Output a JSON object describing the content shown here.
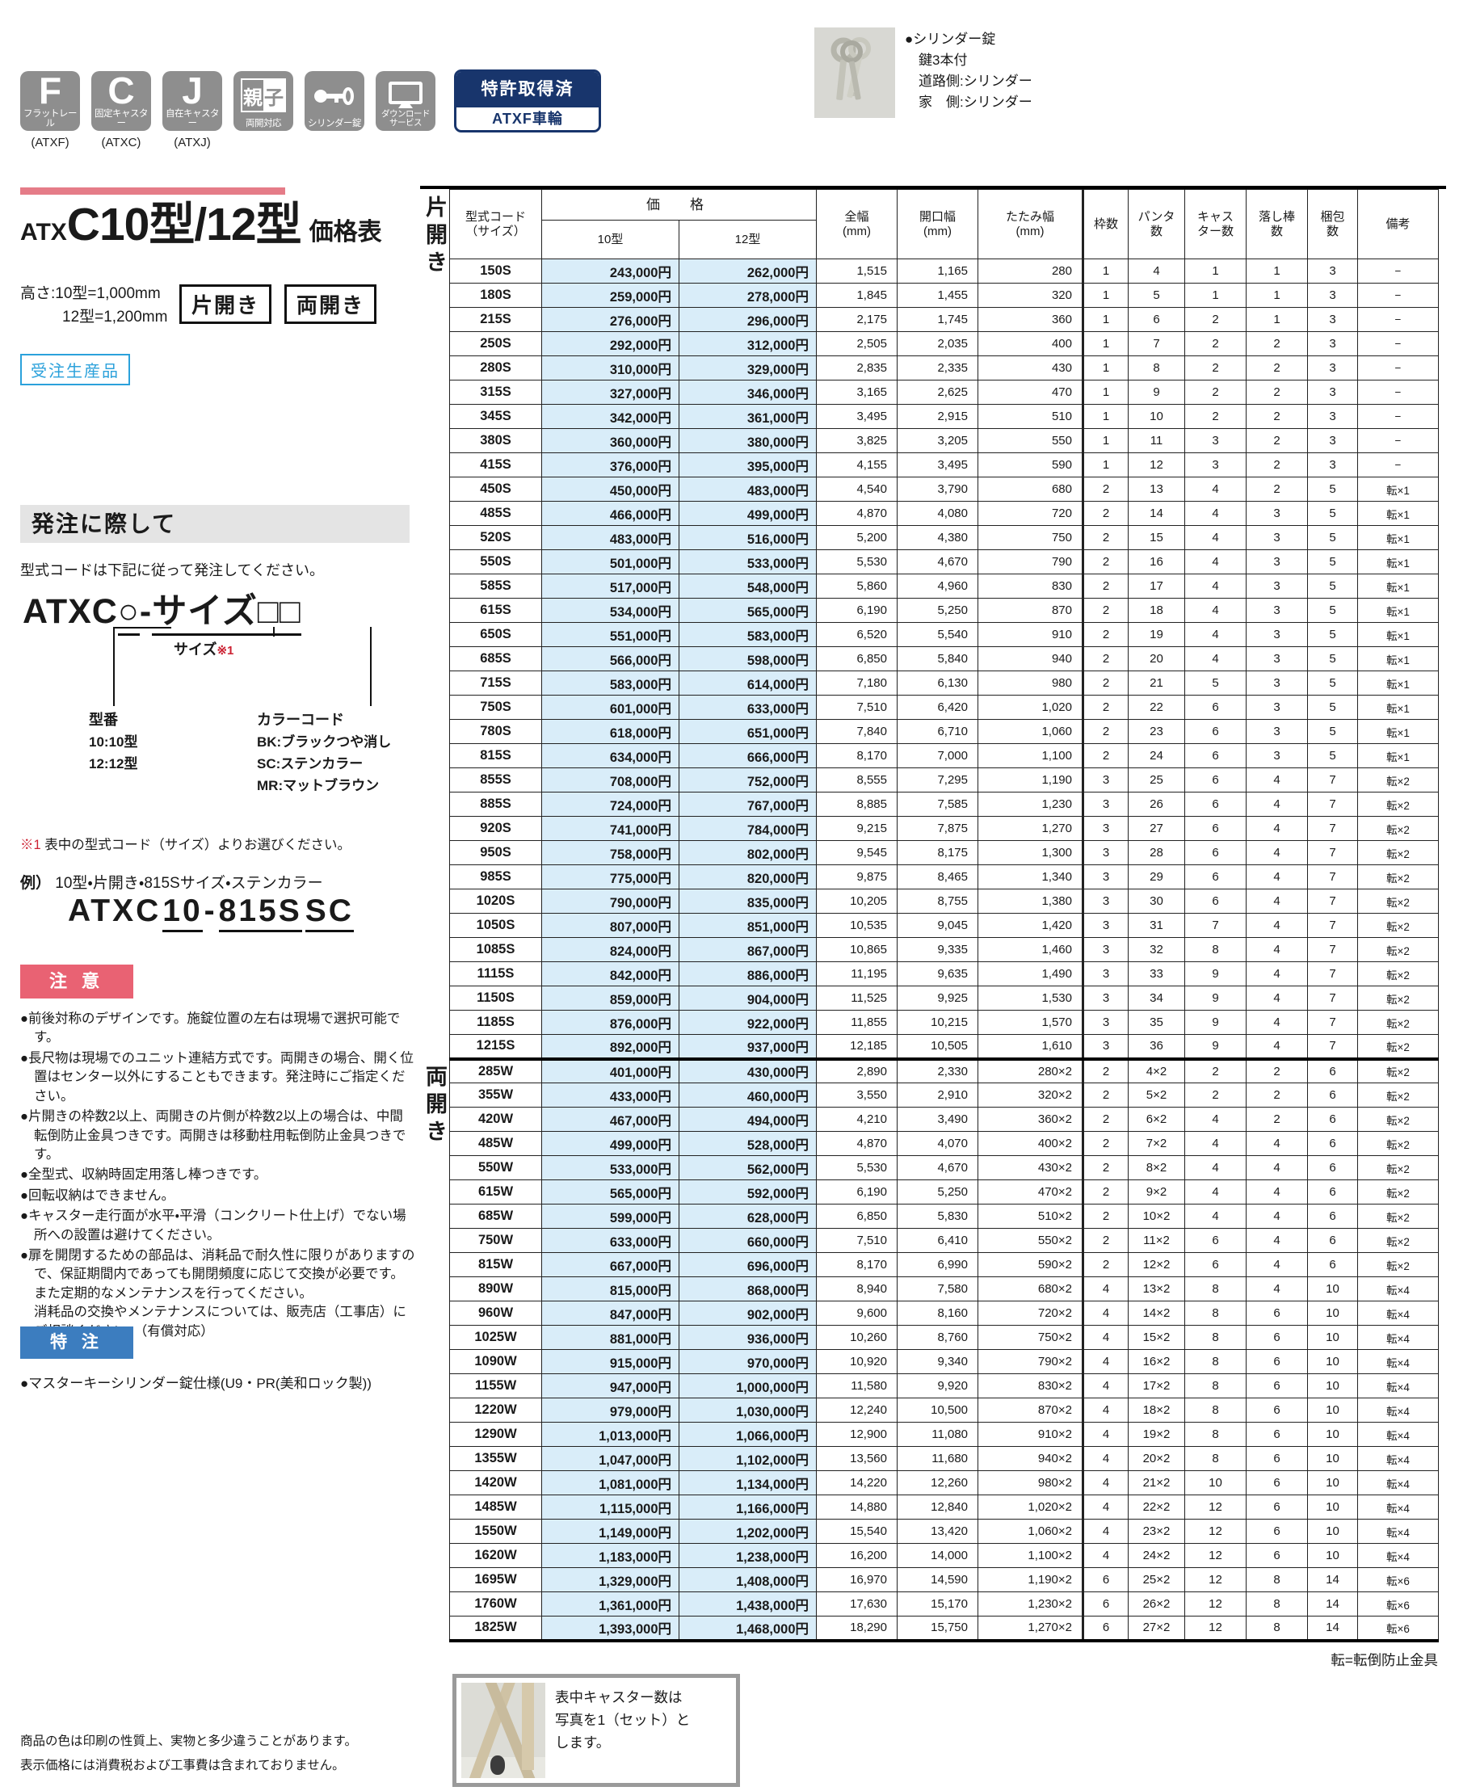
{
  "feature_icons": [
    {
      "type": "letter",
      "glyph": "F",
      "label": "フラットレール",
      "code": "(ATXF)"
    },
    {
      "type": "letter",
      "glyph": "C",
      "label": "固定キャスター",
      "code": "(ATXC)"
    },
    {
      "type": "letter",
      "glyph": "J",
      "label": "自在キャスター",
      "code": "(ATXJ)"
    },
    {
      "type": "oyako",
      "glyph": "親子",
      "label": "両開対応",
      "code": ""
    },
    {
      "type": "key",
      "glyph": "",
      "label": "シリンダー錠",
      "code": ""
    },
    {
      "type": "monitor",
      "glyph": "",
      "label": "ダウンロード\nサービス",
      "code": ""
    }
  ],
  "patent_badge": {
    "top": "特許取得済",
    "bottom": "ATXF車輪"
  },
  "cylinder_note": {
    "lines": [
      "●シリンダー錠",
      "鍵3本付",
      "道路側:シリンダー",
      "家　側:シリンダー"
    ]
  },
  "title": {
    "prefix": "ATX",
    "main": "C10型/12型",
    "suffix": "価格表"
  },
  "height_note": {
    "line1": "高さ:10型=1,000mm",
    "line2": "12型=1,200mm"
  },
  "open_types": {
    "left": "片開き",
    "right": "両開き"
  },
  "order_badge": "受注生産品",
  "order_section": {
    "heading": "発注に際して",
    "instruction": "型式コードは下記に従って発注してください。",
    "code_parts": {
      "prefix": "ATXC",
      "circle": "○",
      "sep": "-",
      "size": "サイズ",
      "boxes": "□□"
    },
    "size_label": "サイズ",
    "size_ref": "※1",
    "model_label": "型番",
    "model_options": [
      "10:10型",
      "12:12型"
    ],
    "color_label": "カラーコード",
    "color_options": [
      "BK:ブラックつや消し",
      "SC:ステンカラー",
      "MR:マットブラウン"
    ],
    "ref_mark": "※1",
    "ref_note": "表中の型式コード（サイズ）よりお選びください。",
    "example_label": "例）",
    "example_text": "10型・片開き・815Sサイズ・ステンカラー",
    "example_code_parts": {
      "prefix": "ATXC",
      "model": "10",
      "sep": "-",
      "size": "815S",
      "color": "SC"
    }
  },
  "caution": {
    "heading": "注 意",
    "items": [
      "●前後対称のデザインです。施錠位置の左右は現場で選択可能です。",
      "●長尺物は現場でのユニット連結方式です。両開きの場合、開く位置はセンター以外にすることもできます。発注時にご指定ください。",
      "●片開きの枠数2以上、両開きの片側が枠数2以上の場合は、中間転倒防止金具つきです。両開きは移動柱用転倒防止金具つきです。",
      "●全型式、収納時固定用落し棒つきです。",
      "●回転収納はできません。",
      "●キャスター走行面が水平・平滑（コンクリート仕上げ）でない場所への設置は避けてください。",
      "●扉を開閉するための部品は、消耗品で耐久性に限りがありますので、保証期間内であっても開閉頻度に応じて交換が必要です。また定期的なメンテナンスを行ってください。\n消耗品の交換やメンテナンスについては、販売店（工事店）にご相談ください。（有償対応）"
    ]
  },
  "special": {
    "heading": "特 注",
    "note": "●マスターキーシリンダー錠仕様(U9・PR(美和ロック製))"
  },
  "price_table": {
    "header": {
      "model_code": "型式コード\n（サイズ）",
      "price_group": "価　格",
      "type10": "10型",
      "type12": "12型",
      "total_width": "全幅\n(mm)",
      "opening_width": "開口幅\n(mm)",
      "folded_width": "たたみ幅\n(mm)",
      "frame_count": "枠数",
      "panta_count": "パンタ\n数",
      "caster_count": "キャス\nター数",
      "drop_bar_count": "落し棒\n数",
      "package_count": "梱包\n数",
      "remarks": "備考"
    },
    "col_keys": [
      "model-code",
      "price-10",
      "price-12",
      "total-width",
      "opening-width",
      "folded-width",
      "frame-count",
      "panta-count",
      "caster-count",
      "drop-bar-count",
      "package-count",
      "remarks"
    ],
    "groups": [
      {
        "label": "片開き",
        "rows": [
          [
            "150S",
            "243,000円",
            "262,000円",
            "1,515",
            "1,165",
            "280",
            "1",
            "4",
            "1",
            "1",
            "3",
            "−"
          ],
          [
            "180S",
            "259,000円",
            "278,000円",
            "1,845",
            "1,455",
            "320",
            "1",
            "5",
            "1",
            "1",
            "3",
            "−"
          ],
          [
            "215S",
            "276,000円",
            "296,000円",
            "2,175",
            "1,745",
            "360",
            "1",
            "6",
            "2",
            "1",
            "3",
            "−"
          ],
          [
            "250S",
            "292,000円",
            "312,000円",
            "2,505",
            "2,035",
            "400",
            "1",
            "7",
            "2",
            "2",
            "3",
            "−"
          ],
          [
            "280S",
            "310,000円",
            "329,000円",
            "2,835",
            "2,335",
            "430",
            "1",
            "8",
            "2",
            "2",
            "3",
            "−"
          ],
          [
            "315S",
            "327,000円",
            "346,000円",
            "3,165",
            "2,625",
            "470",
            "1",
            "9",
            "2",
            "2",
            "3",
            "−"
          ],
          [
            "345S",
            "342,000円",
            "361,000円",
            "3,495",
            "2,915",
            "510",
            "1",
            "10",
            "2",
            "2",
            "3",
            "−"
          ],
          [
            "380S",
            "360,000円",
            "380,000円",
            "3,825",
            "3,205",
            "550",
            "1",
            "11",
            "3",
            "2",
            "3",
            "−"
          ],
          [
            "415S",
            "376,000円",
            "395,000円",
            "4,155",
            "3,495",
            "590",
            "1",
            "12",
            "3",
            "2",
            "3",
            "−"
          ],
          [
            "450S",
            "450,000円",
            "483,000円",
            "4,540",
            "3,790",
            "680",
            "2",
            "13",
            "4",
            "2",
            "5",
            "転×1"
          ],
          [
            "485S",
            "466,000円",
            "499,000円",
            "4,870",
            "4,080",
            "720",
            "2",
            "14",
            "4",
            "3",
            "5",
            "転×1"
          ],
          [
            "520S",
            "483,000円",
            "516,000円",
            "5,200",
            "4,380",
            "750",
            "2",
            "15",
            "4",
            "3",
            "5",
            "転×1"
          ],
          [
            "550S",
            "501,000円",
            "533,000円",
            "5,530",
            "4,670",
            "790",
            "2",
            "16",
            "4",
            "3",
            "5",
            "転×1"
          ],
          [
            "585S",
            "517,000円",
            "548,000円",
            "5,860",
            "4,960",
            "830",
            "2",
            "17",
            "4",
            "3",
            "5",
            "転×1"
          ],
          [
            "615S",
            "534,000円",
            "565,000円",
            "6,190",
            "5,250",
            "870",
            "2",
            "18",
            "4",
            "3",
            "5",
            "転×1"
          ],
          [
            "650S",
            "551,000円",
            "583,000円",
            "6,520",
            "5,540",
            "910",
            "2",
            "19",
            "4",
            "3",
            "5",
            "転×1"
          ],
          [
            "685S",
            "566,000円",
            "598,000円",
            "6,850",
            "5,840",
            "940",
            "2",
            "20",
            "4",
            "3",
            "5",
            "転×1"
          ],
          [
            "715S",
            "583,000円",
            "614,000円",
            "7,180",
            "6,130",
            "980",
            "2",
            "21",
            "5",
            "3",
            "5",
            "転×1"
          ],
          [
            "750S",
            "601,000円",
            "633,000円",
            "7,510",
            "6,420",
            "1,020",
            "2",
            "22",
            "6",
            "3",
            "5",
            "転×1"
          ],
          [
            "780S",
            "618,000円",
            "651,000円",
            "7,840",
            "6,710",
            "1,060",
            "2",
            "23",
            "6",
            "3",
            "5",
            "転×1"
          ],
          [
            "815S",
            "634,000円",
            "666,000円",
            "8,170",
            "7,000",
            "1,100",
            "2",
            "24",
            "6",
            "3",
            "5",
            "転×1"
          ],
          [
            "855S",
            "708,000円",
            "752,000円",
            "8,555",
            "7,295",
            "1,190",
            "3",
            "25",
            "6",
            "4",
            "7",
            "転×2"
          ],
          [
            "885S",
            "724,000円",
            "767,000円",
            "8,885",
            "7,585",
            "1,230",
            "3",
            "26",
            "6",
            "4",
            "7",
            "転×2"
          ],
          [
            "920S",
            "741,000円",
            "784,000円",
            "9,215",
            "7,875",
            "1,270",
            "3",
            "27",
            "6",
            "4",
            "7",
            "転×2"
          ],
          [
            "950S",
            "758,000円",
            "802,000円",
            "9,545",
            "8,175",
            "1,300",
            "3",
            "28",
            "6",
            "4",
            "7",
            "転×2"
          ],
          [
            "985S",
            "775,000円",
            "820,000円",
            "9,875",
            "8,465",
            "1,340",
            "3",
            "29",
            "6",
            "4",
            "7",
            "転×2"
          ],
          [
            "1020S",
            "790,000円",
            "835,000円",
            "10,205",
            "8,755",
            "1,380",
            "3",
            "30",
            "6",
            "4",
            "7",
            "転×2"
          ],
          [
            "1050S",
            "807,000円",
            "851,000円",
            "10,535",
            "9,045",
            "1,420",
            "3",
            "31",
            "7",
            "4",
            "7",
            "転×2"
          ],
          [
            "1085S",
            "824,000円",
            "867,000円",
            "10,865",
            "9,335",
            "1,460",
            "3",
            "32",
            "8",
            "4",
            "7",
            "転×2"
          ],
          [
            "1115S",
            "842,000円",
            "886,000円",
            "11,195",
            "9,635",
            "1,490",
            "3",
            "33",
            "9",
            "4",
            "7",
            "転×2"
          ],
          [
            "1150S",
            "859,000円",
            "904,000円",
            "11,525",
            "9,925",
            "1,530",
            "3",
            "34",
            "9",
            "4",
            "7",
            "転×2"
          ],
          [
            "1185S",
            "876,000円",
            "922,000円",
            "11,855",
            "10,215",
            "1,570",
            "3",
            "35",
            "9",
            "4",
            "7",
            "転×2"
          ],
          [
            "1215S",
            "892,000円",
            "937,000円",
            "12,185",
            "10,505",
            "1,610",
            "3",
            "36",
            "9",
            "4",
            "7",
            "転×2"
          ]
        ]
      },
      {
        "label": "両開き",
        "rows": [
          [
            "285W",
            "401,000円",
            "430,000円",
            "2,890",
            "2,330",
            "280×2",
            "2",
            "4×2",
            "2",
            "2",
            "6",
            "転×2"
          ],
          [
            "355W",
            "433,000円",
            "460,000円",
            "3,550",
            "2,910",
            "320×2",
            "2",
            "5×2",
            "2",
            "2",
            "6",
            "転×2"
          ],
          [
            "420W",
            "467,000円",
            "494,000円",
            "4,210",
            "3,490",
            "360×2",
            "2",
            "6×2",
            "4",
            "2",
            "6",
            "転×2"
          ],
          [
            "485W",
            "499,000円",
            "528,000円",
            "4,870",
            "4,070",
            "400×2",
            "2",
            "7×2",
            "4",
            "4",
            "6",
            "転×2"
          ],
          [
            "550W",
            "533,000円",
            "562,000円",
            "5,530",
            "4,670",
            "430×2",
            "2",
            "8×2",
            "4",
            "4",
            "6",
            "転×2"
          ],
          [
            "615W",
            "565,000円",
            "592,000円",
            "6,190",
            "5,250",
            "470×2",
            "2",
            "9×2",
            "4",
            "4",
            "6",
            "転×2"
          ],
          [
            "685W",
            "599,000円",
            "628,000円",
            "6,850",
            "5,830",
            "510×2",
            "2",
            "10×2",
            "4",
            "4",
            "6",
            "転×2"
          ],
          [
            "750W",
            "633,000円",
            "660,000円",
            "7,510",
            "6,410",
            "550×2",
            "2",
            "11×2",
            "6",
            "4",
            "6",
            "転×2"
          ],
          [
            "815W",
            "667,000円",
            "696,000円",
            "8,170",
            "6,990",
            "590×2",
            "2",
            "12×2",
            "6",
            "4",
            "6",
            "転×2"
          ],
          [
            "890W",
            "815,000円",
            "868,000円",
            "8,940",
            "7,580",
            "680×2",
            "4",
            "13×2",
            "8",
            "4",
            "10",
            "転×4"
          ],
          [
            "960W",
            "847,000円",
            "902,000円",
            "9,600",
            "8,160",
            "720×2",
            "4",
            "14×2",
            "8",
            "6",
            "10",
            "転×4"
          ],
          [
            "1025W",
            "881,000円",
            "936,000円",
            "10,260",
            "8,760",
            "750×2",
            "4",
            "15×2",
            "8",
            "6",
            "10",
            "転×4"
          ],
          [
            "1090W",
            "915,000円",
            "970,000円",
            "10,920",
            "9,340",
            "790×2",
            "4",
            "16×2",
            "8",
            "6",
            "10",
            "転×4"
          ],
          [
            "1155W",
            "947,000円",
            "1,000,000円",
            "11,580",
            "9,920",
            "830×2",
            "4",
            "17×2",
            "8",
            "6",
            "10",
            "転×4"
          ],
          [
            "1220W",
            "979,000円",
            "1,030,000円",
            "12,240",
            "10,500",
            "870×2",
            "4",
            "18×2",
            "8",
            "6",
            "10",
            "転×4"
          ],
          [
            "1290W",
            "1,013,000円",
            "1,066,000円",
            "12,900",
            "11,080",
            "910×2",
            "4",
            "19×2",
            "8",
            "6",
            "10",
            "転×4"
          ],
          [
            "1355W",
            "1,047,000円",
            "1,102,000円",
            "13,560",
            "11,680",
            "940×2",
            "4",
            "20×2",
            "8",
            "6",
            "10",
            "転×4"
          ],
          [
            "1420W",
            "1,081,000円",
            "1,134,000円",
            "14,220",
            "12,260",
            "980×2",
            "4",
            "21×2",
            "10",
            "6",
            "10",
            "転×4"
          ],
          [
            "1485W",
            "1,115,000円",
            "1,166,000円",
            "14,880",
            "12,840",
            "1,020×2",
            "4",
            "22×2",
            "12",
            "6",
            "10",
            "転×4"
          ],
          [
            "1550W",
            "1,149,000円",
            "1,202,000円",
            "15,540",
            "13,420",
            "1,060×2",
            "4",
            "23×2",
            "12",
            "6",
            "10",
            "転×4"
          ],
          [
            "1620W",
            "1,183,000円",
            "1,238,000円",
            "16,200",
            "14,000",
            "1,100×2",
            "4",
            "24×2",
            "12",
            "6",
            "10",
            "転×4"
          ],
          [
            "1695W",
            "1,329,000円",
            "1,408,000円",
            "16,970",
            "14,590",
            "1,190×2",
            "6",
            "25×2",
            "12",
            "8",
            "14",
            "転×6"
          ],
          [
            "1760W",
            "1,361,000円",
            "1,438,000円",
            "17,630",
            "15,170",
            "1,230×2",
            "6",
            "26×2",
            "12",
            "8",
            "14",
            "転×6"
          ],
          [
            "1825W",
            "1,393,000円",
            "1,468,000円",
            "18,290",
            "15,750",
            "1,270×2",
            "6",
            "27×2",
            "12",
            "8",
            "14",
            "転×6"
          ]
        ]
      }
    ],
    "legend": "転=転倒防止金具"
  },
  "caster_note": "表中キャスター数は\n写真を1（セット）と\nします。",
  "footer": {
    "line1": "商品の色は印刷の性質上、実物と多少違うことがあります。",
    "line2": "表示価格には消費税および工事費は含まれておりません。"
  },
  "colors": {
    "accent_pink": "#e57c88",
    "caution_red": "#e96273",
    "special_blue": "#3c7dbf",
    "order_blue": "#2ba1db",
    "patent_navy": "#18356c",
    "price_cell_bg": "#d9edf9",
    "icon_gray": "#8e8e8e"
  }
}
